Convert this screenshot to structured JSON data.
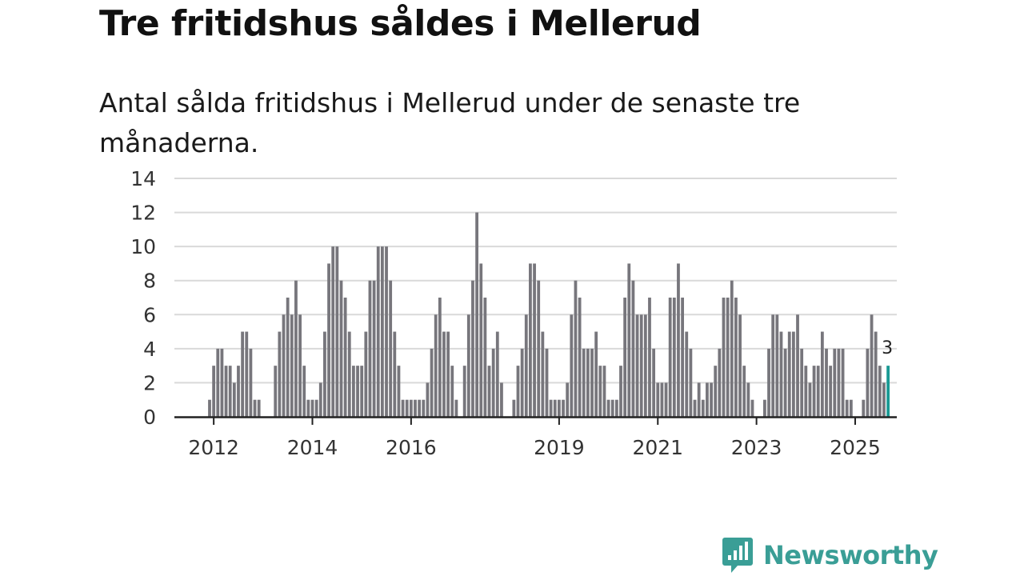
{
  "title": "Tre fritidshus såldes i Mellerud",
  "subtitle": "Antal sålda fritidshus i Mellerud under de senaste tre månaderna.",
  "brand": {
    "name": "Newsworthy",
    "logo_icon": "newsworthy-logo-icon",
    "color": "#3a9e96"
  },
  "chart_data": {
    "type": "bar",
    "title": "Tre fritidshus såldes i Mellerud",
    "subtitle": "Antal sålda fritidshus i Mellerud under de senaste tre månaderna.",
    "xlabel": "",
    "ylabel": "",
    "ylim": [
      0,
      14
    ],
    "yticks": [
      0,
      2,
      4,
      6,
      8,
      10,
      12,
      14
    ],
    "grid": true,
    "x_start": "2011-12",
    "frequency": "monthly",
    "xtick_labels": [
      {
        "label": "2012",
        "x": "2012-01"
      },
      {
        "label": "2014",
        "x": "2014-01"
      },
      {
        "label": "2016",
        "x": "2016-01"
      },
      {
        "label": "2019",
        "x": "2019-01"
      },
      {
        "label": "2021",
        "x": "2021-01"
      },
      {
        "label": "2023",
        "x": "2023-01"
      },
      {
        "label": "2025",
        "x": "2025-01"
      }
    ],
    "values": [
      1,
      3,
      4,
      4,
      3,
      3,
      2,
      3,
      5,
      5,
      4,
      1,
      1,
      null,
      null,
      null,
      3,
      5,
      6,
      7,
      6,
      8,
      6,
      3,
      1,
      1,
      1,
      2,
      5,
      9,
      10,
      10,
      8,
      7,
      5,
      3,
      3,
      3,
      5,
      8,
      8,
      10,
      10,
      10,
      8,
      5,
      3,
      1,
      1,
      1,
      1,
      1,
      1,
      2,
      4,
      6,
      7,
      5,
      5,
      3,
      1,
      null,
      3,
      6,
      8,
      12,
      9,
      7,
      3,
      4,
      5,
      2,
      null,
      null,
      1,
      3,
      4,
      6,
      9,
      9,
      8,
      5,
      4,
      1,
      1,
      1,
      1,
      2,
      6,
      8,
      7,
      4,
      4,
      4,
      5,
      3,
      3,
      1,
      1,
      1,
      3,
      7,
      9,
      8,
      6,
      6,
      6,
      7,
      4,
      2,
      2,
      2,
      7,
      7,
      9,
      7,
      5,
      4,
      1,
      2,
      1,
      2,
      2,
      3,
      4,
      7,
      7,
      8,
      7,
      6,
      3,
      2,
      1,
      null,
      null,
      1,
      4,
      6,
      6,
      5,
      4,
      5,
      5,
      6,
      4,
      3,
      2,
      3,
      3,
      5,
      4,
      3,
      4,
      4,
      4,
      1,
      1,
      null,
      null,
      1,
      4,
      6,
      5,
      3,
      2,
      3
    ],
    "highlight": {
      "x": "2025-09",
      "value": 3,
      "label": "3",
      "color": "#1a9a94"
    },
    "bar_color": "#77767c",
    "grid_color": "#d9d9d9",
    "axis_color": "#222222"
  }
}
